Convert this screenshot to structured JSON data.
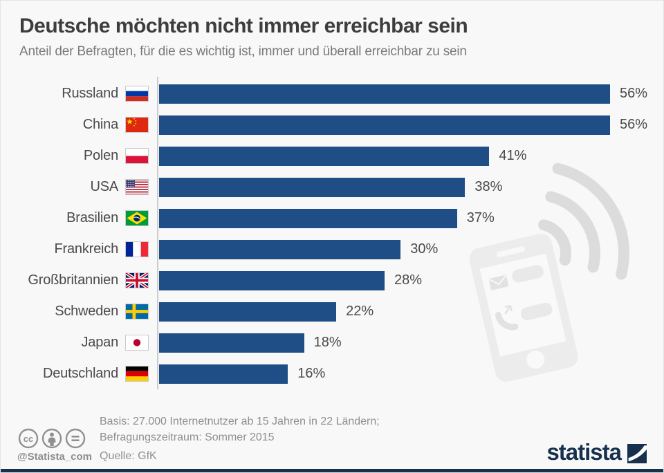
{
  "title": "Deutsche möchten nicht immer erreichbar sein",
  "subtitle": "Anteil der Befragten, für die es wichtig ist, immer und überall erreichbar zu sein",
  "chart_data": {
    "type": "bar",
    "orientation": "horizontal",
    "title": "Deutsche möchten nicht immer erreichbar sein",
    "categories": [
      "Russland",
      "China",
      "Polen",
      "USA",
      "Brasilien",
      "Frankreich",
      "Großbritannien",
      "Schweden",
      "Japan",
      "Deutschland"
    ],
    "values": [
      56,
      56,
      41,
      38,
      37,
      30,
      28,
      22,
      18,
      16
    ],
    "unit": "%",
    "xlim": [
      0,
      56
    ],
    "grid": false,
    "bar_color": "#1f4e86",
    "value_labels": [
      "56%",
      "56%",
      "41%",
      "38%",
      "37%",
      "30%",
      "28%",
      "22%",
      "18%",
      "16%"
    ]
  },
  "flags": [
    "ru",
    "cn",
    "pl",
    "us",
    "br",
    "fr",
    "gb",
    "se",
    "jp",
    "de"
  ],
  "footer": {
    "basis_line1": "Basis: 27.000 Internetnutzer ab 15 Jahren in 22 Ländern;",
    "basis_line2": "Befragungszeitraum: Sommer 2015",
    "source": "Quelle: GfK",
    "handle": "@Statista_com"
  },
  "branding": {
    "logo_text": "statista"
  },
  "icons": {
    "license": [
      "cc-icon",
      "attribution-icon",
      "no-derivatives-icon"
    ],
    "watermark": [
      "smartphone-icon",
      "wifi-signal-icon",
      "envelope-icon",
      "message-bubble-icon",
      "phone-handset-icon",
      "home-button-icon"
    ]
  },
  "colors": {
    "background": "#f8f8f8",
    "bar": "#1f4e86",
    "brand_navy": "#16304d",
    "axis_line": "#cccccc",
    "text_dark": "#3d3d3d",
    "text_gray": "#8f8f8f",
    "watermark_gray": "#dcdcdc"
  }
}
